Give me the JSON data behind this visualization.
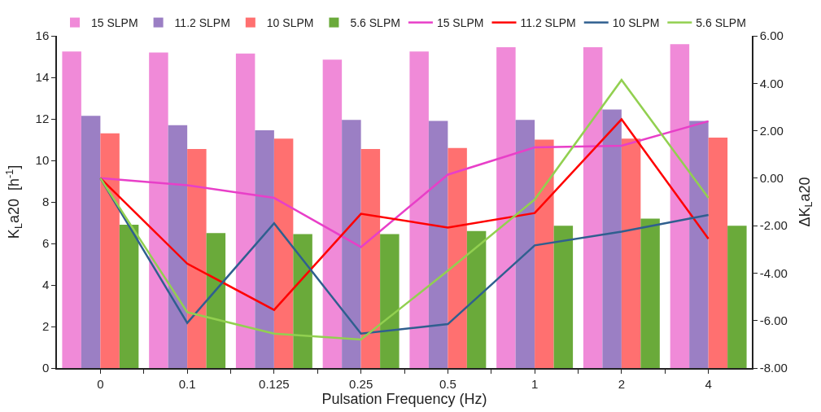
{
  "chart_data": {
    "type": "bar",
    "xlabel": "Pulsation Frequency (Hz)",
    "ylabel": "K$_{L}$a20  [h$^{-1}$]",
    "y2label": "ΔK$_{L}$a20",
    "categories": [
      "0",
      "0.1",
      "0.125",
      "0.25",
      "0.5",
      "1",
      "2",
      "4"
    ],
    "series": [
      {
        "name": "15 SLPM",
        "color": "#f08ad8",
        "values": [
          15.25,
          15.2,
          15.15,
          14.85,
          15.25,
          15.45,
          15.45,
          15.6
        ]
      },
      {
        "name": "11.2 SLPM",
        "color": "#9b7fc4",
        "values": [
          12.15,
          11.7,
          11.45,
          11.95,
          11.9,
          11.95,
          12.45,
          11.9
        ]
      },
      {
        "name": "10 SLPM",
        "color": "#ff7070",
        "values": [
          11.3,
          10.55,
          11.05,
          10.55,
          10.6,
          11.0,
          11.05,
          11.1
        ]
      },
      {
        "name": "5.6 SLPM",
        "color": "#6aaa3a",
        "values": [
          6.9,
          6.5,
          6.45,
          6.45,
          6.6,
          6.85,
          7.2,
          6.85
        ]
      },
      {
        "name": "15 SLPM",
        "type": "line",
        "axis": "y2",
        "color": "#e83fc8",
        "values": [
          0.0,
          -0.3,
          -0.83,
          -2.9,
          0.15,
          1.3,
          1.37,
          2.4
        ]
      },
      {
        "name": "11.2 SLPM",
        "type": "line",
        "axis": "y2",
        "color": "#ff0000",
        "values": [
          0.0,
          -3.6,
          -5.55,
          -1.5,
          -2.08,
          -1.47,
          2.48,
          -2.55
        ]
      },
      {
        "name": "10 SLPM",
        "type": "line",
        "axis": "y2",
        "color": "#2f5f8f",
        "values": [
          0.0,
          -6.1,
          -1.9,
          -6.55,
          -6.15,
          -2.83,
          -2.25,
          -1.55
        ]
      },
      {
        "name": "5.6 SLPM",
        "type": "line",
        "axis": "y2",
        "color": "#92d050",
        "values": [
          0.0,
          -5.65,
          -6.55,
          -6.8,
          -3.9,
          -0.9,
          4.14,
          -0.83
        ]
      }
    ],
    "ylim": [
      0,
      16
    ],
    "yticks": [
      0,
      2,
      4,
      6,
      8,
      10,
      12,
      14,
      16
    ],
    "y2lim": [
      -8,
      6
    ],
    "y2ticks": [
      {
        "value": -8,
        "label": "-8.00"
      },
      {
        "value": -6,
        "label": "-6.00"
      },
      {
        "value": -4,
        "label": "-4.00"
      },
      {
        "value": -2,
        "label": "-2.00"
      },
      {
        "value": 0,
        "label": "0.00"
      },
      {
        "value": 2,
        "label": "2.00"
      },
      {
        "value": 4,
        "label": "4.00"
      },
      {
        "value": 6,
        "label": "6.00"
      }
    ],
    "legend": "top",
    "marker": "none",
    "line_style": "solid"
  }
}
